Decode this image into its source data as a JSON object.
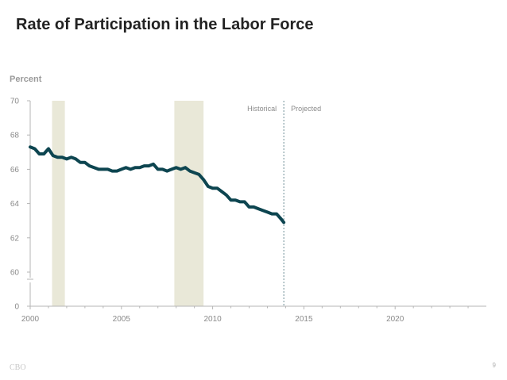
{
  "slide": {
    "title": "Rate of Participation in the Labor Force",
    "footer_left": "CBO",
    "page_number": "9"
  },
  "colors": {
    "line": "#0d4550",
    "recession": "#e9e8d8",
    "axis": "#b5b5b5",
    "divider": "#6f8f96"
  },
  "chart_data": {
    "type": "line",
    "title": "",
    "ylabel": "Percent",
    "xlabel": "",
    "xlim": [
      2000,
      2025
    ],
    "x_ticks": [
      2000,
      2005,
      2010,
      2015,
      2020
    ],
    "y_ticks": [
      0,
      60,
      62,
      64,
      66,
      68,
      70
    ],
    "ylim_broken": {
      "lower": 0,
      "upper": [
        60,
        70
      ]
    },
    "recessions": [
      [
        2001.2,
        2001.9
      ],
      [
        2007.9,
        2009.5
      ]
    ],
    "divider": {
      "x": 2013.9,
      "left_label": "Historical",
      "right_label": "Projected"
    },
    "series": [
      {
        "x": [
          2000.0,
          2000.25,
          2000.5,
          2000.75,
          2001.0,
          2001.25,
          2001.5,
          2001.75,
          2002.0,
          2002.25,
          2002.5,
          2002.75,
          2003.0,
          2003.25,
          2003.5,
          2003.75,
          2004.0,
          2004.25,
          2004.5,
          2004.75,
          2005.0,
          2005.25,
          2005.5,
          2005.75,
          2006.0,
          2006.25,
          2006.5,
          2006.75,
          2007.0,
          2007.25,
          2007.5,
          2007.75,
          2008.0,
          2008.25,
          2008.5,
          2008.75,
          2009.0,
          2009.25,
          2009.5,
          2009.75,
          2010.0,
          2010.25,
          2010.5,
          2010.75,
          2011.0,
          2011.25,
          2011.5,
          2011.75,
          2012.0,
          2012.25,
          2012.5,
          2012.75,
          2013.0,
          2013.25,
          2013.5,
          2013.75,
          2013.9
        ],
        "values": [
          67.3,
          67.2,
          66.9,
          66.9,
          67.2,
          66.8,
          66.7,
          66.7,
          66.6,
          66.7,
          66.6,
          66.4,
          66.4,
          66.2,
          66.1,
          66.0,
          66.0,
          66.0,
          65.9,
          65.9,
          66.0,
          66.1,
          66.0,
          66.1,
          66.1,
          66.2,
          66.2,
          66.3,
          66.0,
          66.0,
          65.9,
          66.0,
          66.1,
          66.0,
          66.1,
          65.9,
          65.8,
          65.7,
          65.4,
          65.0,
          64.9,
          64.9,
          64.7,
          64.5,
          64.2,
          64.2,
          64.1,
          64.1,
          63.8,
          63.8,
          63.7,
          63.6,
          63.5,
          63.4,
          63.4,
          63.1,
          62.9
        ]
      }
    ]
  }
}
